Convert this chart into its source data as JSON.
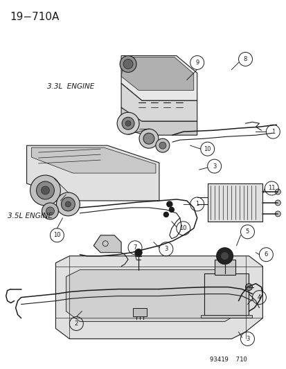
{
  "title": "19−710A",
  "bg_color": "#ffffff",
  "dc": "#1a1a1a",
  "label_33": "3.3L  ENGINE",
  "label_35": "3.5L ENGINE",
  "footer": "93419  710",
  "fig_width": 4.14,
  "fig_height": 5.33,
  "dpi": 100,
  "title_fs": 11,
  "label_fs": 7.5,
  "footer_fs": 6.5,
  "circ_label_fs": 6.0,
  "circ_r": 0.016
}
